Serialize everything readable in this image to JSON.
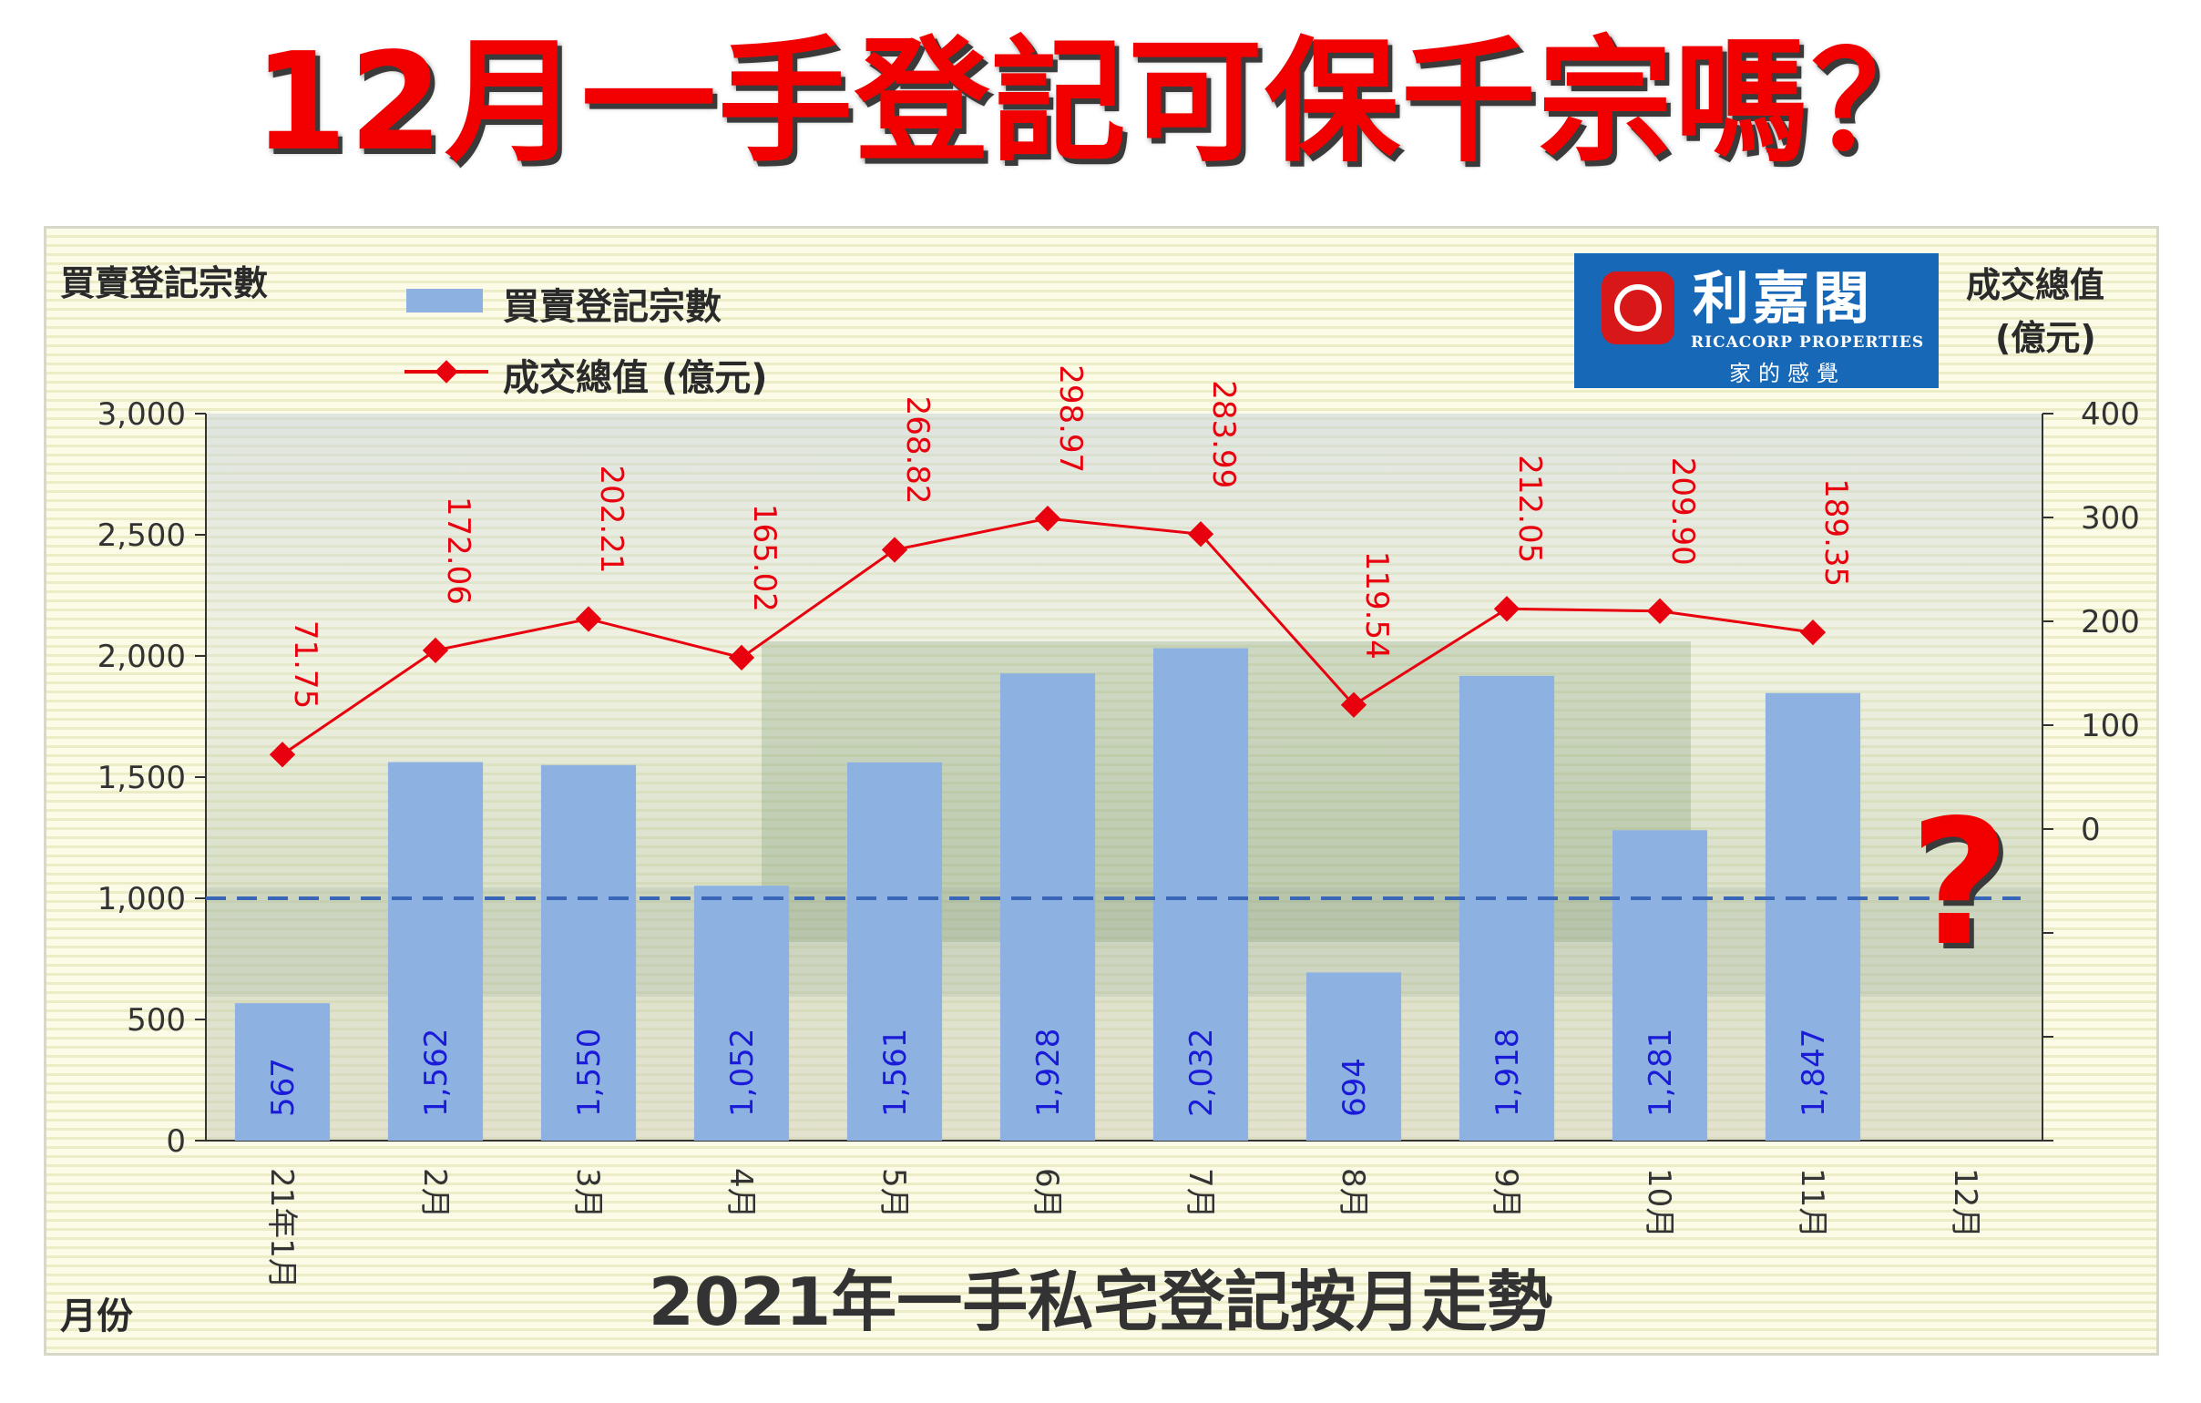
{
  "headline": "12月一手登記可保千宗嗎？",
  "caption": "2021年一手私宅登記按月走勢",
  "question_mark": "?",
  "logo": {
    "name_cn": "利嘉閣",
    "name_en": "RICACORP PROPERTIES",
    "tagline": "家的感覺"
  },
  "chart_data": {
    "type": "bar",
    "categories": [
      "21年1月",
      "2月",
      "3月",
      "4月",
      "5月",
      "6月",
      "7月",
      "8月",
      "9月",
      "10月",
      "11月",
      "12月"
    ],
    "series": [
      {
        "name": "買賣登記宗數",
        "type": "bar",
        "axis": "left",
        "color": "#8db2e2",
        "values": [
          567,
          1562,
          1550,
          1052,
          1561,
          1928,
          2032,
          694,
          1918,
          1281,
          1847,
          null
        ],
        "labels": [
          "567",
          "1,562",
          "1,550",
          "1,052",
          "1,561",
          "1,928",
          "2,032",
          "694",
          "1,918",
          "1,281",
          "1,847",
          ""
        ]
      },
      {
        "name": "成交總值 (億元)",
        "type": "line",
        "axis": "right",
        "color": "#e8000e",
        "values": [
          71.75,
          172.06,
          202.21,
          165.02,
          268.82,
          298.97,
          283.99,
          119.54,
          212.05,
          209.9,
          189.35,
          null
        ],
        "labels": [
          "71.75",
          "172.06",
          "202.21",
          "165.02",
          "268.82",
          "298.97",
          "283.99",
          "119.54",
          "212.05",
          "209.90",
          "189.35",
          ""
        ]
      }
    ],
    "ylabel": "買賣登記宗數",
    "y2label_line1": "成交總值",
    "y2label_line2": "(億元)",
    "xlabel": "月份",
    "ylim": [
      0,
      3000
    ],
    "yticks": [
      "3,000",
      "2,500",
      "2,000",
      "1,500",
      "1,000",
      "500",
      "0"
    ],
    "ytick_values": [
      3000,
      2500,
      2000,
      1500,
      1000,
      500,
      0
    ],
    "y2lim": [
      -300,
      400
    ],
    "y2ticks": [
      "400",
      "300",
      "200",
      "100",
      "0"
    ],
    "y2tick_values": [
      400,
      300,
      200,
      100,
      0
    ],
    "reference_line": 1000,
    "legend_position": "top-left",
    "grid": false
  }
}
